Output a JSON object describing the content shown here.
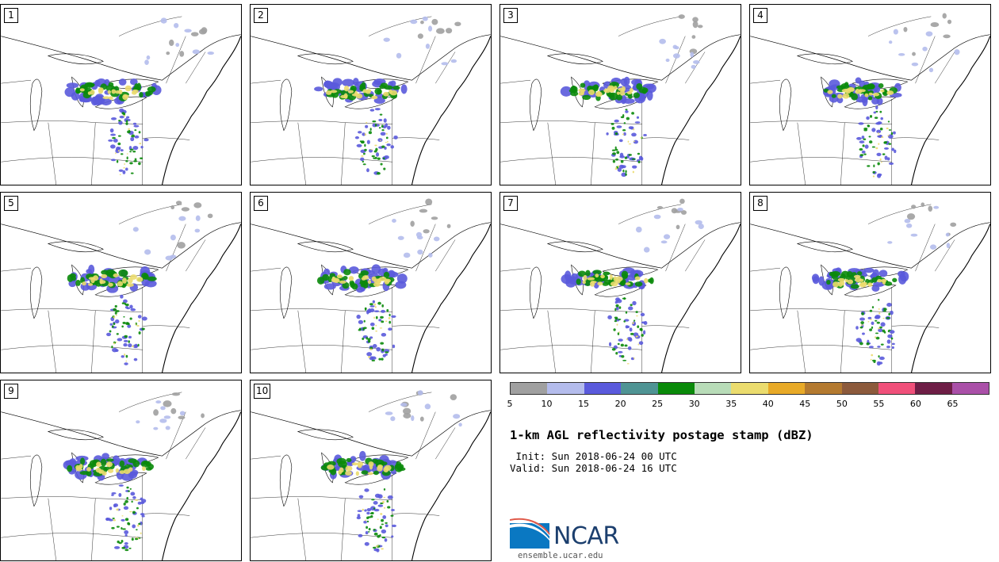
{
  "panels": [
    {
      "number": "1"
    },
    {
      "number": "2"
    },
    {
      "number": "3"
    },
    {
      "number": "4"
    },
    {
      "number": "5"
    },
    {
      "number": "6"
    },
    {
      "number": "7"
    },
    {
      "number": "8"
    },
    {
      "number": "9"
    },
    {
      "number": "10"
    }
  ],
  "colorbar": {
    "colors": [
      "#a0a0a0",
      "#b4bcec",
      "#5a5adc",
      "#4f9494",
      "#0a8a0a",
      "#b8dcb8",
      "#ebdc6e",
      "#e8aa28",
      "#b47a30",
      "#8c5a3c",
      "#f0507a",
      "#6e1e46",
      "#aa50a8"
    ],
    "tick_labels": [
      "5",
      "10",
      "15",
      "20",
      "25",
      "30",
      "35",
      "40",
      "45",
      "50",
      "55",
      "60",
      "65"
    ]
  },
  "title": "1-km AGL reflectivity postage stamp (dBZ)",
  "init_line": " Init: Sun 2018-06-24 00 UTC",
  "valid_line": "Valid: Sun 2018-06-24 16 UTC",
  "logo": {
    "name": "NCAR",
    "url": "ensemble.ucar.edu"
  }
}
